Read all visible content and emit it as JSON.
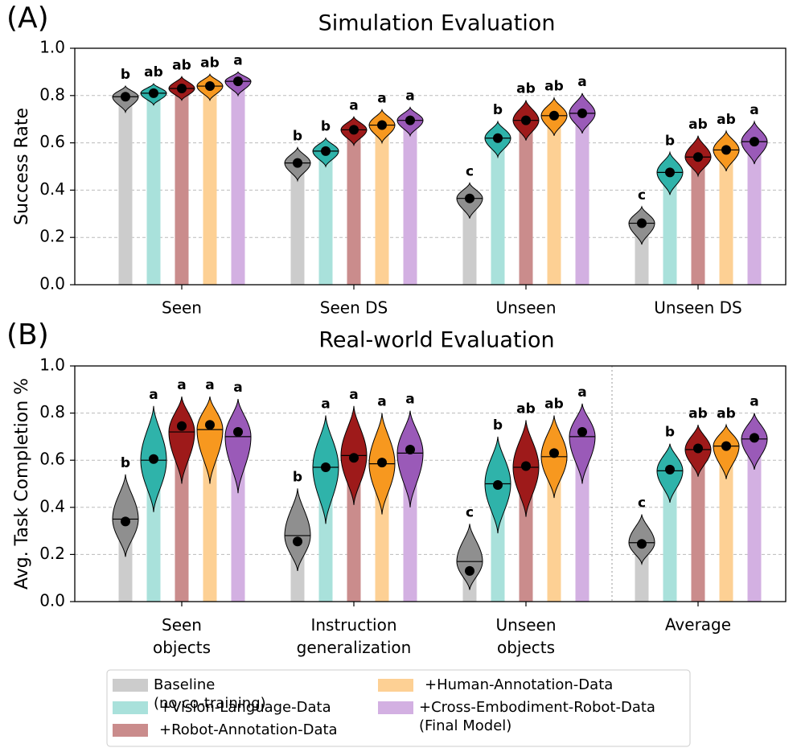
{
  "chart_data": [
    {
      "type": "violin",
      "panel": "(A)",
      "title": "Simulation Evaluation",
      "ylabel": "Success Rate",
      "categories": [
        "Seen",
        "Seen DS",
        "Unseen",
        "Unseen DS"
      ],
      "ylim": [
        0,
        1
      ],
      "yticks": [
        {
          "value": 0,
          "label": "0.0"
        },
        0.2,
        0.4,
        0.6,
        0.8,
        {
          "value": 1,
          "label": "1.0"
        }
      ],
      "grid": true,
      "series": [
        {
          "name": "Baseline (no co-training)",
          "color": "#8f8f8f",
          "bar_color": "#cccccc",
          "values": [
            0.795,
            0.515,
            0.365,
            0.26
          ],
          "medians": [
            0.795,
            0.515,
            0.365,
            0.26
          ],
          "mins": [
            0.73,
            0.44,
            0.28,
            0.17
          ],
          "maxs": [
            0.84,
            0.58,
            0.43,
            0.33
          ],
          "significance": [
            "b",
            "b",
            "c",
            "c"
          ]
        },
        {
          "name": "+Vision-Language-Data",
          "color": "#2fb3aa",
          "bar_color": "#a9e1db",
          "values": [
            0.81,
            0.565,
            0.62,
            0.475
          ],
          "medians": [
            0.81,
            0.565,
            0.62,
            0.475
          ],
          "mins": [
            0.76,
            0.5,
            0.54,
            0.38
          ],
          "maxs": [
            0.85,
            0.62,
            0.69,
            0.56
          ],
          "significance": [
            "ab",
            "b",
            "b",
            "b"
          ]
        },
        {
          "name": "+Robot-Annotation-Data",
          "color": "#9e1a1a",
          "bar_color": "#ca8c8c",
          "values": [
            0.83,
            0.655,
            0.695,
            0.54
          ],
          "medians": [
            0.83,
            0.655,
            0.695,
            0.54
          ],
          "mins": [
            0.78,
            0.59,
            0.61,
            0.46
          ],
          "maxs": [
            0.88,
            0.71,
            0.78,
            0.63
          ],
          "significance": [
            "ab",
            "a",
            "ab",
            "ab"
          ]
        },
        {
          "name": "+Human-Annotation-Data",
          "color": "#f7981f",
          "bar_color": "#fdd094",
          "values": [
            0.84,
            0.675,
            0.715,
            0.57
          ],
          "medians": [
            0.84,
            0.675,
            0.715,
            0.57
          ],
          "mins": [
            0.78,
            0.6,
            0.63,
            0.48
          ],
          "maxs": [
            0.89,
            0.74,
            0.79,
            0.65
          ],
          "significance": [
            "ab",
            "a",
            "ab",
            "ab"
          ]
        },
        {
          "name": "+Cross-Embodiment-Robot-Data (Final Model)",
          "color": "#9a5ab8",
          "bar_color": "#d3b0e2",
          "values": [
            0.86,
            0.695,
            0.725,
            0.605
          ],
          "medians": [
            0.86,
            0.695,
            0.725,
            0.605
          ],
          "mins": [
            0.8,
            0.63,
            0.64,
            0.51
          ],
          "maxs": [
            0.9,
            0.75,
            0.81,
            0.69
          ],
          "significance": [
            "a",
            "a",
            "a",
            "a"
          ]
        }
      ]
    },
    {
      "type": "violin",
      "panel": "(B)",
      "title": "Real-world Evaluation",
      "ylabel": "Avg. Task Completion %",
      "categories": [
        "Seen objects",
        "Instruction generalization",
        "Unseen objects",
        "Average"
      ],
      "ylim": [
        0,
        1
      ],
      "yticks": [
        {
          "value": 0,
          "label": "0.0"
        },
        0.2,
        0.4,
        0.6,
        0.8,
        {
          "value": 1,
          "label": "1.0"
        }
      ],
      "grid": true,
      "series": [
        {
          "color": "#8f8f8f",
          "bar_color": "#cccccc",
          "values": [
            0.34,
            0.255,
            0.13,
            0.245
          ],
          "medians": [
            0.35,
            0.28,
            0.17,
            0.25
          ],
          "mins": [
            0.19,
            0.13,
            0.05,
            0.16
          ],
          "maxs": [
            0.54,
            0.48,
            0.33,
            0.37
          ],
          "significance": [
            "b",
            "b",
            "c",
            "c"
          ]
        },
        {
          "color": "#2fb3aa",
          "bar_color": "#a9e1db",
          "values": [
            0.605,
            0.57,
            0.495,
            0.56
          ],
          "medians": [
            0.6,
            0.57,
            0.5,
            0.555
          ],
          "mins": [
            0.38,
            0.33,
            0.29,
            0.42
          ],
          "maxs": [
            0.83,
            0.79,
            0.7,
            0.67
          ],
          "significance": [
            "a",
            "a",
            "b",
            "b"
          ]
        },
        {
          "color": "#9e1a1a",
          "bar_color": "#ca8c8c",
          "values": [
            0.745,
            0.61,
            0.575,
            0.65
          ],
          "medians": [
            0.72,
            0.62,
            0.57,
            0.645
          ],
          "mins": [
            0.5,
            0.41,
            0.36,
            0.53
          ],
          "maxs": [
            0.87,
            0.83,
            0.77,
            0.75
          ],
          "significance": [
            "a",
            "a",
            "ab",
            "ab"
          ]
        },
        {
          "color": "#f7981f",
          "bar_color": "#fdd094",
          "values": [
            0.75,
            0.59,
            0.63,
            0.66
          ],
          "medians": [
            0.73,
            0.585,
            0.615,
            0.66
          ],
          "mins": [
            0.5,
            0.37,
            0.44,
            0.52
          ],
          "maxs": [
            0.87,
            0.8,
            0.79,
            0.75
          ],
          "significance": [
            "a",
            "a",
            "ab",
            "ab"
          ]
        },
        {
          "color": "#9a5ab8",
          "bar_color": "#d3b0e2",
          "values": [
            0.72,
            0.645,
            0.72,
            0.695
          ],
          "medians": [
            0.7,
            0.63,
            0.7,
            0.69
          ],
          "mins": [
            0.46,
            0.4,
            0.5,
            0.56
          ],
          "maxs": [
            0.86,
            0.81,
            0.84,
            0.8
          ],
          "significance": [
            "a",
            "a",
            "a",
            "a"
          ]
        }
      ]
    }
  ]
}
